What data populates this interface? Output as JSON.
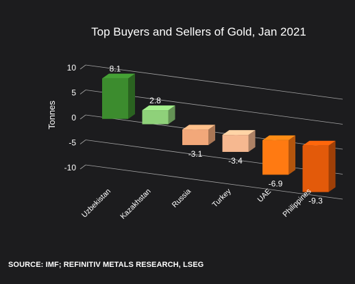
{
  "chart_data": {
    "type": "bar",
    "title": "Top Buyers and Sellers of Gold, Jan 2021",
    "ylabel": "Tonnes",
    "xlabel": "",
    "categories": [
      "Uzbekistan",
      "Kazakhstan",
      "Russia",
      "Turkey",
      "UAE",
      "Philippines"
    ],
    "values": [
      8.1,
      2.8,
      -3.1,
      -3.4,
      -6.9,
      -9.3
    ],
    "data_labels": [
      "8.1",
      "2.8",
      "-3.1",
      "-3.4",
      "-6.9",
      "-9.3"
    ],
    "bar_colors": [
      "#3c8c2e",
      "#8fd17a",
      "#f2a87a",
      "#f6b890",
      "#ff7a12",
      "#e35a0a"
    ],
    "yticks": [
      10,
      5,
      0,
      -5,
      -10
    ],
    "ylim": [
      -10,
      10
    ],
    "style": "3d-column",
    "grid": true,
    "legend": "none"
  },
  "source": "SOURCE: IMF; REFINITIV METALS RESEARCH, LSEG",
  "colors": {
    "background": "#1c1c1e",
    "gridline": "#bfbfbf",
    "text": "#ffffff"
  }
}
